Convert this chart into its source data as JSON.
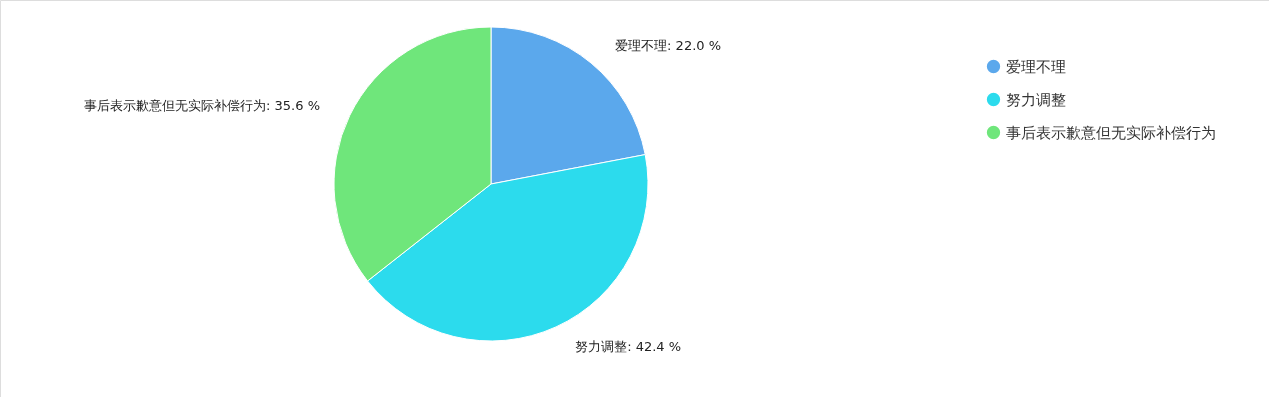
{
  "chart_data": {
    "type": "pie",
    "categories": [
      "爱理不理",
      "努力调整",
      "事后表示歉意但无实际补偿行为"
    ],
    "values": [
      22.0,
      42.4,
      35.6
    ],
    "colors": [
      "#5ba8ec",
      "#2cdbed",
      "#6fe67b"
    ],
    "value_labels": [
      "爱理不理: 22.0 %",
      "努力调整: 42.4 %",
      "事后表示歉意但无实际补偿行为: 35.6 %"
    ],
    "legend": "right"
  }
}
